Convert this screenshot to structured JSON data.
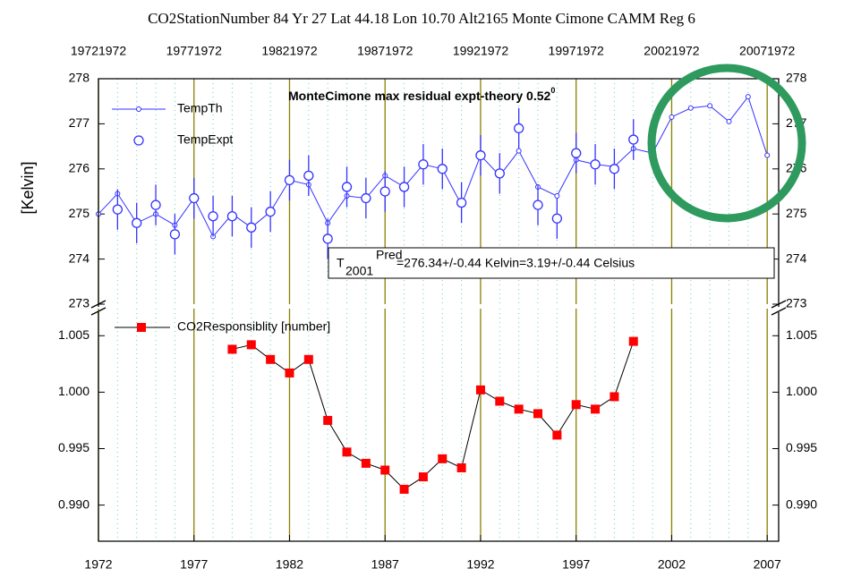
{
  "chart_data": [
    {
      "type": "line",
      "title": "CO2StationNumber 84 Yr 27 Lat 44.18 Lon 10.70 Alt2165 Monte Cimone CAMM Reg 6",
      "ylabel": "[Kelvin]",
      "annotation": "MonteCimone max residual expt-theory 0.52",
      "annotation_sup": "0",
      "box": {
        "t": "T",
        "sub": "2001",
        "sup": "Pred",
        "text": "=276.34+/-0.44 Kelvin=3.19+/-0.44 Celsius"
      },
      "xlim": [
        1972,
        2007.6
      ],
      "ylim": [
        273,
        278
      ],
      "yticks": [
        273,
        274,
        275,
        276,
        277,
        278
      ],
      "x2ticks": [
        {
          "value": 1972,
          "label": "19721972"
        },
        {
          "value": 1977,
          "label": "19771972"
        },
        {
          "value": 1982,
          "label": "19821972"
        },
        {
          "value": 1987,
          "label": "19871972"
        },
        {
          "value": 1992,
          "label": "19921972"
        },
        {
          "value": 1997,
          "label": "19971972"
        },
        {
          "value": 2002,
          "label": "20021972"
        },
        {
          "value": 2007,
          "label": "20071972"
        }
      ],
      "minor_xticks": [
        1972,
        1973,
        1974,
        1975,
        1976,
        1977,
        1978,
        1979,
        1980,
        1981,
        1982,
        1983,
        1984,
        1985,
        1986,
        1987,
        1988,
        1989,
        1990,
        1991,
        1992,
        1993,
        1994,
        1995,
        1996,
        1997,
        1998,
        1999,
        2000,
        2001,
        2002,
        2003,
        2004,
        2005,
        2006,
        2007
      ],
      "series": [
        {
          "name": "TempTh",
          "color": "#3333ff",
          "x": [
            1972,
            1973,
            1974,
            1975,
            1976,
            1977,
            1978,
            1979,
            1980,
            1981,
            1982,
            1983,
            1984,
            1985,
            1986,
            1987,
            1988,
            1989,
            1990,
            1991,
            1992,
            1993,
            1994,
            1995,
            1996,
            1997,
            1998,
            1999,
            2000,
            2001,
            2002,
            2003,
            2004,
            2005,
            2006,
            2007
          ],
          "values": [
            275.0,
            275.45,
            274.8,
            275.0,
            274.75,
            275.35,
            274.5,
            275.0,
            274.7,
            275.05,
            275.75,
            275.65,
            274.8,
            275.4,
            275.35,
            275.85,
            275.6,
            276.1,
            276.0,
            275.2,
            276.3,
            275.85,
            276.4,
            275.6,
            275.4,
            276.2,
            276.1,
            276.05,
            276.45,
            276.35,
            277.15,
            277.35,
            277.4,
            277.05,
            277.6,
            276.3
          ]
        },
        {
          "name": "TempExpt",
          "color": "#3333ff",
          "x": [
            1973,
            1974,
            1975,
            1976,
            1977,
            1978,
            1979,
            1980,
            1981,
            1982,
            1983,
            1984,
            1985,
            1986,
            1987,
            1988,
            1989,
            1990,
            1991,
            1992,
            1993,
            1994,
            1995,
            1996,
            1997,
            1998,
            1999,
            2000
          ],
          "values": [
            275.1,
            274.8,
            275.2,
            274.55,
            275.35,
            274.95,
            274.95,
            274.7,
            275.05,
            275.75,
            275.85,
            274.45,
            275.6,
            275.35,
            275.5,
            275.6,
            276.1,
            276.0,
            275.25,
            276.3,
            275.9,
            276.9,
            275.2,
            274.9,
            276.35,
            276.1,
            276.0,
            276.65
          ],
          "errors": [
            0.45,
            0.45,
            0.45,
            0.45,
            0.45,
            0.45,
            0.45,
            0.45,
            0.45,
            0.45,
            0.45,
            0.45,
            0.45,
            0.45,
            0.45,
            0.45,
            0.45,
            0.45,
            0.45,
            0.45,
            0.45,
            0.45,
            0.45,
            0.45,
            0.45,
            0.45,
            0.45,
            0.45
          ]
        }
      ]
    },
    {
      "type": "line",
      "xlim": [
        1972,
        2007.6
      ],
      "ylim": [
        0.9868,
        1.0074
      ],
      "yticks": [
        {
          "value": 0.99,
          "label": "0.990"
        },
        {
          "value": 0.995,
          "label": "0.995"
        },
        {
          "value": 1.0,
          "label": "1.000"
        },
        {
          "value": 1.005,
          "label": "1.005"
        }
      ],
      "xticks": [
        1972,
        1977,
        1982,
        1987,
        1992,
        1997,
        2002,
        2007
      ],
      "series": [
        {
          "name": "CO2Responsiblity [number]",
          "color": "#ff0000",
          "x": [
            1979,
            1980,
            1981,
            1982,
            1983,
            1984,
            1985,
            1986,
            1987,
            1988,
            1989,
            1990,
            1991,
            1992,
            1993,
            1994,
            1995,
            1996,
            1997,
            1998,
            1999,
            2000
          ],
          "values": [
            1.0038,
            1.0042,
            1.0029,
            1.0017,
            1.0029,
            0.9975,
            0.9947,
            0.9937,
            0.9931,
            0.9914,
            0.9925,
            0.9941,
            0.9933,
            1.0002,
            0.9992,
            0.9985,
            0.9981,
            0.9962,
            0.9989,
            0.9985,
            0.9996,
            1.0045
          ]
        }
      ]
    }
  ]
}
